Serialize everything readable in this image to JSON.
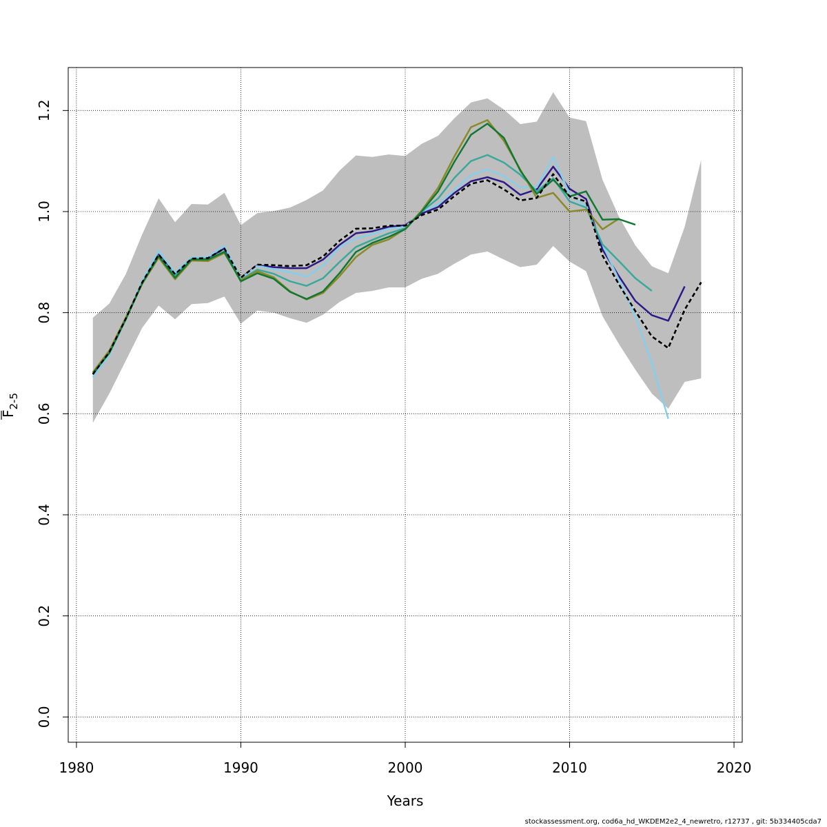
{
  "chart_data": {
    "type": "line",
    "title": "",
    "xlabel": "Years",
    "ylabel": "F",
    "ylabel_subscript": "2-5",
    "xlim": [
      1979.5,
      2020.5
    ],
    "ylim": [
      -0.05,
      1.285
    ],
    "xticks": [
      1980,
      1990,
      2000,
      2010,
      2020
    ],
    "xtick_labels": [
      "1980",
      "1990",
      "2000",
      "2010",
      "2020"
    ],
    "yticks": [
      0.0,
      0.2,
      0.4,
      0.6,
      0.8,
      1.0,
      1.2
    ],
    "ytick_labels": [
      "0.0",
      "0.2",
      "0.4",
      "0.6",
      "0.8",
      "1.0",
      "1.2"
    ],
    "grid": true,
    "band": {
      "color": "#bebebe",
      "x": [
        1981,
        1982,
        1983,
        1984,
        1985,
        1986,
        1987,
        1988,
        1989,
        1990,
        1991,
        1992,
        1993,
        1994,
        1995,
        1996,
        1997,
        1998,
        1999,
        2000,
        2001,
        2002,
        2003,
        2004,
        2005,
        2006,
        2007,
        2008,
        2009,
        2010,
        2011,
        2012,
        2013,
        2014,
        2015,
        2016,
        2017,
        2018
      ],
      "lower": [
        0.582,
        0.64,
        0.705,
        0.77,
        0.814,
        0.787,
        0.817,
        0.819,
        0.832,
        0.778,
        0.804,
        0.8,
        0.789,
        0.78,
        0.796,
        0.821,
        0.839,
        0.843,
        0.85,
        0.85,
        0.867,
        0.877,
        0.897,
        0.915,
        0.921,
        0.905,
        0.89,
        0.895,
        0.932,
        0.901,
        0.882,
        0.793,
        0.738,
        0.687,
        0.64,
        0.61,
        0.663,
        0.67
      ],
      "upper": [
        0.79,
        0.818,
        0.876,
        0.955,
        1.026,
        0.979,
        1.015,
        1.014,
        1.037,
        0.973,
        0.997,
        1.001,
        1.008,
        1.023,
        1.042,
        1.081,
        1.111,
        1.108,
        1.113,
        1.11,
        1.134,
        1.15,
        1.185,
        1.216,
        1.224,
        1.202,
        1.173,
        1.178,
        1.236,
        1.186,
        1.179,
        1.063,
        0.99,
        0.933,
        0.892,
        0.878,
        0.97,
        1.102
      ]
    },
    "series": [
      {
        "color": "#000000",
        "dashed": true,
        "x": [
          1981,
          1982,
          1983,
          1984,
          1985,
          1986,
          1987,
          1988,
          1989,
          1990,
          1991,
          1992,
          1993,
          1994,
          1995,
          1996,
          1997,
          1998,
          1999,
          2000,
          2001,
          2002,
          2003,
          2004,
          2005,
          2006,
          2007,
          2008,
          2009,
          2010,
          2011,
          2012,
          2013,
          2014,
          2015,
          2016,
          2017,
          2018
        ],
        "values": [
          0.678,
          0.722,
          0.788,
          0.86,
          0.915,
          0.876,
          0.907,
          0.908,
          0.927,
          0.869,
          0.895,
          0.894,
          0.892,
          0.894,
          0.911,
          0.942,
          0.966,
          0.967,
          0.972,
          0.972,
          0.993,
          1.004,
          1.031,
          1.055,
          1.062,
          1.044,
          1.022,
          1.027,
          1.074,
          1.03,
          1.02,
          0.913,
          0.856,
          0.803,
          0.753,
          0.73,
          0.806,
          0.86
        ]
      },
      {
        "color": "#2e1a87",
        "x": [
          1981,
          1982,
          1983,
          1984,
          1985,
          1986,
          1987,
          1988,
          1989,
          1990,
          1991,
          1992,
          1993,
          1994,
          1995,
          1996,
          1997,
          1998,
          1999,
          2000,
          2001,
          2002,
          2003,
          2004,
          2005,
          2006,
          2007,
          2008,
          2009,
          2010,
          2011,
          2012,
          2013,
          2014,
          2015,
          2016,
          2017
        ],
        "values": [
          0.678,
          0.722,
          0.788,
          0.86,
          0.915,
          0.876,
          0.907,
          0.908,
          0.927,
          0.869,
          0.894,
          0.89,
          0.888,
          0.888,
          0.905,
          0.934,
          0.957,
          0.961,
          0.97,
          0.973,
          0.996,
          1.009,
          1.037,
          1.06,
          1.068,
          1.058,
          1.033,
          1.044,
          1.089,
          1.045,
          1.025,
          0.925,
          0.872,
          0.823,
          0.795,
          0.784,
          0.852
        ]
      },
      {
        "color": "#87ceeb",
        "x": [
          1981,
          1982,
          1983,
          1984,
          1985,
          1986,
          1987,
          1988,
          1989,
          1990,
          1991,
          1992,
          1993,
          1994,
          1995,
          1996,
          1997,
          1998,
          1999,
          2000,
          2001,
          2002,
          2003,
          2004,
          2005,
          2006,
          2007,
          2008,
          2009,
          2010,
          2011,
          2012,
          2013,
          2014,
          2015,
          2016
        ],
        "values": [
          0.672,
          0.716,
          0.786,
          0.863,
          0.922,
          0.879,
          0.909,
          0.91,
          0.932,
          0.868,
          0.893,
          0.886,
          0.88,
          0.871,
          0.893,
          0.929,
          0.947,
          0.955,
          0.966,
          0.97,
          1.0,
          1.014,
          1.043,
          1.072,
          1.083,
          1.07,
          1.048,
          1.048,
          1.108,
          1.035,
          1.01,
          0.935,
          0.865,
          0.793,
          0.7,
          0.59
        ]
      },
      {
        "color": "#3aa89a",
        "x": [
          1981,
          1982,
          1983,
          1984,
          1985,
          1986,
          1987,
          1988,
          1989,
          1990,
          1991,
          1992,
          1993,
          1994,
          1995,
          1996,
          1997,
          1998,
          1999,
          2000,
          2001,
          2002,
          2003,
          2004,
          2005,
          2006,
          2007,
          2008,
          2009,
          2010,
          2011,
          2012,
          2013,
          2014,
          2015
        ],
        "values": [
          0.68,
          0.722,
          0.787,
          0.858,
          0.913,
          0.874,
          0.906,
          0.906,
          0.921,
          0.865,
          0.885,
          0.877,
          0.862,
          0.853,
          0.868,
          0.9,
          0.93,
          0.944,
          0.957,
          0.967,
          1.0,
          1.026,
          1.067,
          1.1,
          1.112,
          1.097,
          1.073,
          1.04,
          1.066,
          1.02,
          1.008,
          0.935,
          0.902,
          0.868,
          0.843
        ]
      },
      {
        "color": "#8a8a2a",
        "x": [
          1981,
          1982,
          1983,
          1984,
          1985,
          1986,
          1987,
          1988,
          1989,
          1990,
          1991,
          1992,
          1993,
          1994,
          1995,
          1996,
          1997,
          1998,
          1999,
          2000,
          2001,
          2002,
          2003,
          2004,
          2005,
          2006,
          2007,
          2008,
          2009,
          2010,
          2011,
          2012,
          2013
        ],
        "values": [
          0.682,
          0.725,
          0.79,
          0.857,
          0.909,
          0.866,
          0.903,
          0.902,
          0.918,
          0.864,
          0.882,
          0.87,
          0.842,
          0.826,
          0.839,
          0.872,
          0.91,
          0.934,
          0.945,
          0.966,
          1.002,
          1.047,
          1.11,
          1.167,
          1.181,
          1.14,
          1.083,
          1.027,
          1.037,
          1.0,
          1.004,
          0.965,
          0.986
        ]
      },
      {
        "color": "#117733",
        "x": [
          1981,
          1982,
          1983,
          1984,
          1985,
          1986,
          1987,
          1988,
          1989,
          1990,
          1991,
          1992,
          1993,
          1994,
          1995,
          1996,
          1997,
          1998,
          1999,
          2000,
          2001,
          2002,
          2003,
          2004,
          2005,
          2006,
          2007,
          2008,
          2009,
          2010,
          2011,
          2012,
          2013,
          2014
        ],
        "values": [
          0.68,
          0.72,
          0.787,
          0.858,
          0.912,
          0.869,
          0.905,
          0.905,
          0.92,
          0.862,
          0.878,
          0.867,
          0.841,
          0.827,
          0.842,
          0.878,
          0.92,
          0.938,
          0.95,
          0.965,
          1.0,
          1.04,
          1.099,
          1.152,
          1.174,
          1.146,
          1.081,
          1.035,
          1.063,
          1.03,
          1.04,
          0.984,
          0.985,
          0.974
        ]
      }
    ]
  },
  "footer": "stockassessment.org, cod6a_hd_WKDEM2e2_4_newretro, r12737 , git: 5b334405cda7"
}
